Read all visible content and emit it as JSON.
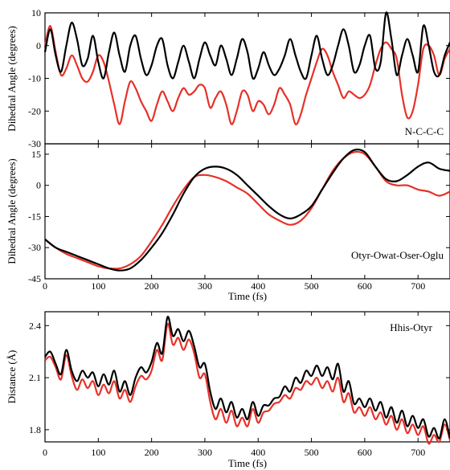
{
  "chart_data": [
    {
      "type": "line",
      "annotation": "N-C-C-C",
      "ylabel": "Dihedral Angle (degrees)",
      "xlabel": "",
      "xlim": [
        0,
        760
      ],
      "ylim": [
        -30,
        10
      ],
      "xticks": [
        "0",
        "100",
        "200",
        "300",
        "400",
        "500",
        "600",
        "700"
      ],
      "yticks": [
        "10",
        "0",
        "-10",
        "-20",
        "-30"
      ],
      "x": [
        0,
        10,
        20,
        30,
        40,
        50,
        60,
        70,
        80,
        90,
        100,
        110,
        120,
        130,
        140,
        150,
        160,
        170,
        180,
        190,
        200,
        210,
        220,
        230,
        240,
        250,
        260,
        270,
        280,
        290,
        300,
        310,
        320,
        330,
        340,
        350,
        360,
        370,
        380,
        390,
        400,
        410,
        420,
        430,
        440,
        450,
        460,
        470,
        480,
        490,
        500,
        510,
        520,
        530,
        540,
        550,
        560,
        570,
        580,
        590,
        600,
        610,
        620,
        630,
        640,
        650,
        660,
        670,
        680,
        690,
        700,
        710,
        720,
        730,
        740,
        750,
        760
      ],
      "series": [
        {
          "color": "#000000",
          "values": [
            -2,
            5,
            -3,
            -8,
            0,
            7,
            2,
            -6,
            -4,
            3,
            -5,
            -10,
            -2,
            4,
            -3,
            -8,
            0,
            3,
            -4,
            -9,
            -6,
            0,
            2,
            -6,
            -10,
            -5,
            0,
            -5,
            -10,
            -4,
            1,
            -3,
            -6,
            0,
            -4,
            -9,
            -4,
            2,
            -2,
            -10,
            -7,
            -2,
            -6,
            -9,
            -7,
            -3,
            2,
            -3,
            -8,
            -10,
            -3,
            3,
            -4,
            -9,
            -6,
            0,
            5,
            0,
            -8,
            -6,
            0,
            3,
            -7,
            -5,
            10,
            2,
            -9,
            -3,
            2,
            -3,
            -8,
            6,
            0,
            -8,
            -9,
            -3,
            1
          ]
        },
        {
          "color": "#e63128",
          "values": [
            0,
            6,
            -2,
            -9,
            -7,
            -3,
            -6,
            -10,
            -11,
            -8,
            -3,
            -5,
            -11,
            -18,
            -24,
            -17,
            -11,
            -13,
            -17,
            -20,
            -23,
            -18,
            -14,
            -17,
            -20,
            -16,
            -13,
            -15,
            -14,
            -12,
            -13,
            -19,
            -16,
            -14,
            -18,
            -24,
            -20,
            -14,
            -15,
            -20,
            -17,
            -18,
            -21,
            -18,
            -13,
            -15,
            -18,
            -24,
            -21,
            -15,
            -10,
            -5,
            -1,
            -3,
            -8,
            -12,
            -16,
            -14,
            -15,
            -16,
            -15,
            -12,
            -6,
            -1,
            1,
            -1,
            -4,
            -15,
            -22,
            -20,
            -12,
            -1,
            0,
            -3,
            -9,
            -4,
            -1
          ]
        }
      ]
    },
    {
      "type": "line",
      "annotation": "Otyr-Owat-Oser-Oglu",
      "ylabel": "Dihedral Angle (degrees)",
      "xlabel": "Time (fs)",
      "xlim": [
        0,
        760
      ],
      "ylim": [
        -45,
        20
      ],
      "xticks": [
        "0",
        "100",
        "200",
        "300",
        "400",
        "500",
        "600",
        "700"
      ],
      "yticks": [
        "15",
        "0",
        "-15",
        "-30",
        "-45"
      ],
      "x": [
        0,
        20,
        40,
        60,
        80,
        100,
        120,
        140,
        160,
        180,
        200,
        220,
        240,
        260,
        280,
        300,
        320,
        340,
        360,
        380,
        400,
        420,
        440,
        460,
        480,
        500,
        520,
        540,
        560,
        580,
        600,
        620,
        640,
        660,
        680,
        700,
        720,
        740,
        760
      ],
      "series": [
        {
          "color": "#000000",
          "values": [
            -26,
            -30,
            -32,
            -34,
            -36,
            -38,
            -40,
            -41,
            -40,
            -36,
            -30,
            -23,
            -14,
            -4,
            4,
            8,
            9,
            8,
            5,
            0,
            -5,
            -10,
            -14,
            -16,
            -14,
            -10,
            -2,
            6,
            13,
            17,
            16,
            9,
            3,
            2,
            5,
            9,
            11,
            8,
            7
          ]
        },
        {
          "color": "#e63128",
          "values": [
            -26,
            -30,
            -33,
            -35,
            -37,
            -39,
            -40,
            -40,
            -38,
            -34,
            -27,
            -19,
            -10,
            -2,
            4,
            5,
            4,
            2,
            -1,
            -4,
            -9,
            -14,
            -17,
            -19,
            -17,
            -11,
            -2,
            7,
            13,
            16,
            15,
            9,
            2,
            0,
            0,
            -2,
            -3,
            -5,
            -3
          ]
        }
      ]
    },
    {
      "type": "line",
      "annotation": "Hhis-Otyr",
      "ylabel": "Distance (Å)",
      "xlabel": "Time (fs)",
      "xlim": [
        0,
        760
      ],
      "ylim": [
        1.73,
        2.48
      ],
      "xticks": [
        "0",
        "100",
        "200",
        "300",
        "400",
        "500",
        "600",
        "700"
      ],
      "yticks": [
        "2.4",
        "2.1",
        "1.8"
      ],
      "x": [
        0,
        10,
        20,
        30,
        40,
        50,
        60,
        70,
        80,
        90,
        100,
        110,
        120,
        130,
        140,
        150,
        160,
        170,
        180,
        190,
        200,
        210,
        220,
        230,
        240,
        250,
        260,
        270,
        280,
        290,
        300,
        310,
        320,
        330,
        340,
        350,
        360,
        370,
        380,
        390,
        400,
        410,
        420,
        430,
        440,
        450,
        460,
        470,
        480,
        490,
        500,
        510,
        520,
        530,
        540,
        550,
        560,
        570,
        580,
        590,
        600,
        610,
        620,
        630,
        640,
        650,
        660,
        670,
        680,
        690,
        700,
        710,
        720,
        730,
        740,
        750,
        760
      ],
      "series": [
        {
          "color": "#000000",
          "values": [
            2.22,
            2.25,
            2.18,
            2.12,
            2.26,
            2.14,
            2.08,
            2.14,
            2.1,
            2.13,
            2.05,
            2.12,
            2.06,
            2.14,
            2.02,
            2.08,
            2.0,
            2.1,
            2.16,
            2.13,
            2.19,
            2.3,
            2.24,
            2.45,
            2.34,
            2.38,
            2.31,
            2.37,
            2.28,
            2.16,
            2.18,
            2.02,
            1.92,
            1.98,
            1.9,
            1.96,
            1.87,
            1.92,
            1.86,
            1.96,
            1.88,
            1.94,
            1.94,
            1.98,
            1.99,
            2.05,
            2.02,
            2.1,
            2.07,
            2.14,
            2.11,
            2.17,
            2.11,
            2.16,
            2.09,
            2.18,
            2.02,
            2.08,
            1.95,
            1.98,
            1.93,
            1.98,
            1.91,
            1.96,
            1.87,
            1.93,
            1.84,
            1.91,
            1.82,
            1.88,
            1.81,
            1.86,
            1.76,
            1.81,
            1.75,
            1.86,
            1.75
          ]
        },
        {
          "color": "#e63128",
          "values": [
            2.2,
            2.22,
            2.16,
            2.09,
            2.23,
            2.11,
            2.03,
            2.09,
            2.04,
            2.08,
            2.0,
            2.06,
            2.01,
            2.08,
            1.98,
            2.03,
            1.96,
            2.05,
            2.11,
            2.09,
            2.14,
            2.26,
            2.2,
            2.41,
            2.29,
            2.33,
            2.26,
            2.32,
            2.24,
            2.1,
            2.12,
            1.96,
            1.86,
            1.92,
            1.84,
            1.91,
            1.82,
            1.87,
            1.82,
            1.92,
            1.84,
            1.9,
            1.91,
            1.95,
            1.96,
            2.0,
            1.98,
            2.04,
            2.03,
            2.08,
            2.06,
            2.1,
            2.04,
            2.08,
            2.02,
            2.1,
            1.96,
            2.01,
            1.9,
            1.93,
            1.88,
            1.93,
            1.86,
            1.9,
            1.83,
            1.88,
            1.8,
            1.86,
            1.78,
            1.83,
            1.77,
            1.82,
            1.72,
            1.77,
            1.73,
            1.83,
            1.74
          ]
        }
      ]
    }
  ]
}
